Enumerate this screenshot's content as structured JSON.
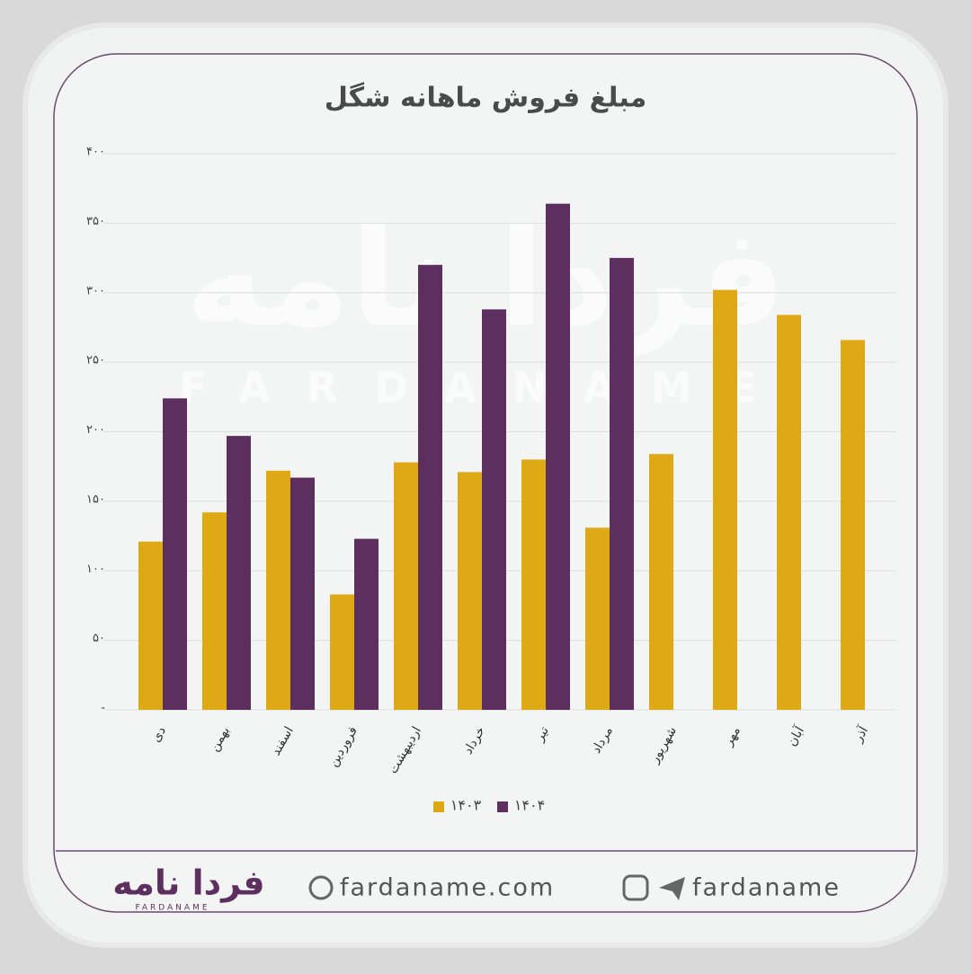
{
  "chart_data": {
    "type": "bar",
    "title": "مبلغ فروش ماهانه شگل",
    "categories": [
      "دی",
      "بهمن",
      "اسفند",
      "فروردین",
      "اردیبهشت",
      "خرداد",
      "تیر",
      "مرداد",
      "شهریور",
      "مهر",
      "آبان",
      "آذر"
    ],
    "series": [
      {
        "name": "۱۴۰۳",
        "color": "#dfa916",
        "values": [
          121,
          142,
          172,
          83,
          178,
          171,
          180,
          131,
          184,
          302,
          284,
          266
        ]
      },
      {
        "name": "۱۴۰۴",
        "color": "#5c2f5e",
        "values": [
          224,
          197,
          167,
          123,
          320,
          288,
          364,
          325,
          null,
          null,
          null,
          null
        ]
      }
    ],
    "ylim": [
      0,
      400
    ],
    "yticks": [
      {
        "value": 0,
        "label": "-"
      },
      {
        "value": 50,
        "label": "۵۰"
      },
      {
        "value": 100,
        "label": "۱۰۰"
      },
      {
        "value": 150,
        "label": "۱۵۰"
      },
      {
        "value": 200,
        "label": "۲۰۰"
      },
      {
        "value": 250,
        "label": "۲۵۰"
      },
      {
        "value": 300,
        "label": "۳۰۰"
      },
      {
        "value": 350,
        "label": "۳۵۰"
      },
      {
        "value": 400,
        "label": "۴۰۰"
      }
    ],
    "grid": true,
    "legend": "bottom"
  },
  "footer": {
    "logo": "فردا نامه",
    "logo_sub": "FARDANAME",
    "website": "fardaname.com",
    "social": "fardaname"
  }
}
